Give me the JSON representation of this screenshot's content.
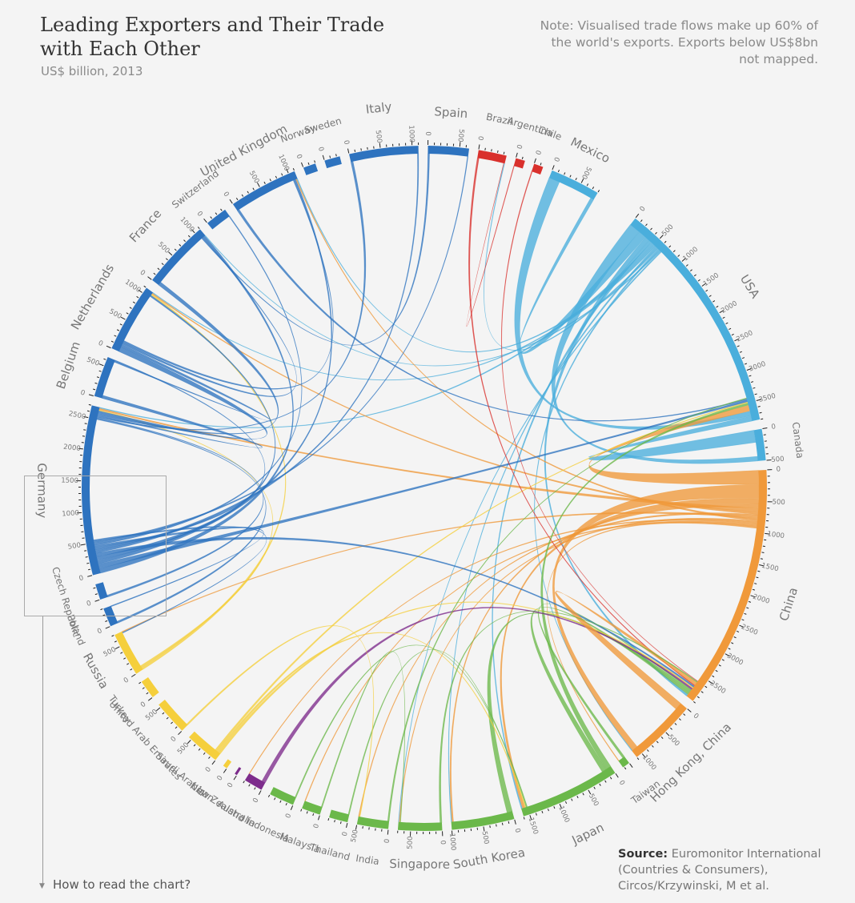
{
  "header": {
    "title": "Leading Exporters and Their Trade with Each Other",
    "subtitle": "US$ billion, 2013",
    "note": "Note: Visualised trade flows make up 60% of the world's exports. Exports below US$8bn not mapped."
  },
  "footer": {
    "source_label": "Source:",
    "source_text": "Euromonitor International (Countries & Consumers), Circos/Krzywinski, M et al.",
    "how_to_read": "How to read the chart?"
  },
  "colors": {
    "europe": "#2e73bf",
    "americas_north": "#4aaedc",
    "latam": "#d9302c",
    "china": "#f0993a",
    "asia_pacific": "#6bb84a",
    "middle_east": "#f5cf3c",
    "oceania": "#7d2c8c"
  },
  "chart_data": {
    "type": "chord",
    "title": "Leading Exporters and Their Trade with Each Other",
    "units": "US$ billion",
    "year": 2013,
    "segments": [
      {
        "name": "USA",
        "region": "americas_north",
        "exports": 3800,
        "ticks": [
          "0",
          "500",
          "1000",
          "1500",
          "2000",
          "2500",
          "3000",
          "3500"
        ]
      },
      {
        "name": "Canada",
        "region": "americas_north",
        "exports": 500,
        "ticks": [
          "0",
          "500"
        ]
      },
      {
        "name": "China",
        "region": "china",
        "exports": 3900,
        "ticks": [
          "0",
          "500",
          "1000",
          "1500",
          "2000",
          "2500",
          "3000",
          "3500"
        ]
      },
      {
        "name": "Hong Kong, China",
        "region": "china",
        "exports": 1100,
        "ticks": [
          "0",
          "500",
          "1000"
        ]
      },
      {
        "name": "Taiwan",
        "region": "asia_pacific",
        "exports": 120,
        "ticks": []
      },
      {
        "name": "Japan",
        "region": "asia_pacific",
        "exports": 1600,
        "ticks": [
          "0",
          "500",
          "1000",
          "1500"
        ]
      },
      {
        "name": "South Korea",
        "region": "asia_pacific",
        "exports": 1000,
        "ticks": [
          "0",
          "500",
          "1000"
        ]
      },
      {
        "name": "Singapore",
        "region": "asia_pacific",
        "exports": 700,
        "ticks": [
          "0",
          "500"
        ]
      },
      {
        "name": "India",
        "region": "asia_pacific",
        "exports": 500,
        "ticks": [
          "0",
          "500"
        ]
      },
      {
        "name": "Thailand",
        "region": "asia_pacific",
        "exports": 300,
        "ticks": [
          "0"
        ]
      },
      {
        "name": "Malaysia",
        "region": "asia_pacific",
        "exports": 300,
        "ticks": [
          "0"
        ]
      },
      {
        "name": "Indonesia",
        "region": "asia_pacific",
        "exports": 400,
        "ticks": [
          "0"
        ]
      },
      {
        "name": "Australia",
        "region": "oceania",
        "exports": 300,
        "ticks": [
          "0"
        ]
      },
      {
        "name": "New Zealand",
        "region": "oceania",
        "exports": 40,
        "ticks": [
          "0"
        ]
      },
      {
        "name": "Iran",
        "region": "middle_east",
        "exports": 70,
        "ticks": [
          "0"
        ]
      },
      {
        "name": "Saudi Arabia",
        "region": "middle_east",
        "exports": 550,
        "ticks": [
          "0",
          "500"
        ]
      },
      {
        "name": "United Arab Emirates",
        "region": "middle_east",
        "exports": 550,
        "ticks": [
          "0",
          "500"
        ]
      },
      {
        "name": "Turkey",
        "region": "middle_east",
        "exports": 300,
        "ticks": [
          "0"
        ]
      },
      {
        "name": "Russia",
        "region": "middle_east",
        "exports": 700,
        "ticks": [
          "0",
          "500"
        ]
      },
      {
        "name": "Poland",
        "region": "europe",
        "exports": 300,
        "ticks": [
          "0"
        ]
      },
      {
        "name": "Czech Republic",
        "region": "europe",
        "exports": 250,
        "ticks": [
          "0"
        ]
      },
      {
        "name": "Germany",
        "region": "europe",
        "exports": 2700,
        "ticks": [
          "0",
          "500",
          "1000",
          "1500",
          "2000",
          "2500"
        ]
      },
      {
        "name": "Belgium",
        "region": "europe",
        "exports": 650,
        "ticks": [
          "0",
          "500"
        ]
      },
      {
        "name": "Netherlands",
        "region": "europe",
        "exports": 1100,
        "ticks": [
          "0",
          "500",
          "1000"
        ]
      },
      {
        "name": "France",
        "region": "europe",
        "exports": 1100,
        "ticks": [
          "0",
          "500",
          "1000"
        ]
      },
      {
        "name": "Switzerland",
        "region": "europe",
        "exports": 350,
        "ticks": [
          "0"
        ]
      },
      {
        "name": "United Kingdom",
        "region": "europe",
        "exports": 1100,
        "ticks": [
          "0",
          "500",
          "1000"
        ]
      },
      {
        "name": "Norway",
        "region": "europe",
        "exports": 200,
        "ticks": [
          "0"
        ]
      },
      {
        "name": "Sweden",
        "region": "europe",
        "exports": 250,
        "ticks": [
          "0"
        ]
      },
      {
        "name": "Italy",
        "region": "europe",
        "exports": 1100,
        "ticks": [
          "0",
          "500",
          "1000"
        ]
      },
      {
        "name": "Spain",
        "region": "europe",
        "exports": 650,
        "ticks": [
          "0",
          "500"
        ]
      },
      {
        "name": "Brazil",
        "region": "latam",
        "exports": 450,
        "ticks": [
          "0"
        ]
      },
      {
        "name": "Argentina",
        "region": "latam",
        "exports": 150,
        "ticks": [
          "0"
        ]
      },
      {
        "name": "Chile",
        "region": "latam",
        "exports": 150,
        "ticks": [
          "0"
        ]
      },
      {
        "name": "Mexico",
        "region": "americas_north",
        "exports": 800,
        "ticks": [
          "0",
          "500"
        ]
      }
    ],
    "flows": [
      {
        "from": "USA",
        "to": "Canada",
        "value": 300
      },
      {
        "from": "USA",
        "to": "Mexico",
        "value": 220
      },
      {
        "from": "USA",
        "to": "China",
        "value": 120
      },
      {
        "from": "USA",
        "to": "Japan",
        "value": 70
      },
      {
        "from": "USA",
        "to": "Germany",
        "value": 50
      },
      {
        "from": "USA",
        "to": "United Kingdom",
        "value": 45
      },
      {
        "from": "USA",
        "to": "Netherlands",
        "value": 40
      },
      {
        "from": "USA",
        "to": "South Korea",
        "value": 40
      },
      {
        "from": "USA",
        "to": "Brazil",
        "value": 40
      },
      {
        "from": "USA",
        "to": "Hong Kong, China",
        "value": 40
      },
      {
        "from": "USA",
        "to": "France",
        "value": 30
      },
      {
        "from": "USA",
        "to": "Singapore",
        "value": 30
      },
      {
        "from": "Canada",
        "to": "USA",
        "value": 330
      },
      {
        "from": "Mexico",
        "to": "USA",
        "value": 300
      },
      {
        "from": "China",
        "to": "USA",
        "value": 370
      },
      {
        "from": "China",
        "to": "Hong Kong, China",
        "value": 380
      },
      {
        "from": "China",
        "to": "Japan",
        "value": 150
      },
      {
        "from": "China",
        "to": "South Korea",
        "value": 90
      },
      {
        "from": "China",
        "to": "Germany",
        "value": 95
      },
      {
        "from": "China",
        "to": "Netherlands",
        "value": 60
      },
      {
        "from": "China",
        "to": "India",
        "value": 50
      },
      {
        "from": "China",
        "to": "Russia",
        "value": 50
      },
      {
        "from": "China",
        "to": "United Kingdom",
        "value": 50
      },
      {
        "from": "China",
        "to": "Singapore",
        "value": 45
      },
      {
        "from": "China",
        "to": "Australia",
        "value": 40
      },
      {
        "from": "China",
        "to": "Malaysia",
        "value": 45
      },
      {
        "from": "China",
        "to": "Taiwan",
        "value": 40
      },
      {
        "from": "Japan",
        "to": "USA",
        "value": 135
      },
      {
        "from": "Japan",
        "to": "China",
        "value": 130
      },
      {
        "from": "South Korea",
        "to": "China",
        "value": 145
      },
      {
        "from": "Taiwan",
        "to": "China",
        "value": 60
      },
      {
        "from": "Malaysia",
        "to": "Singapore",
        "value": 30
      },
      {
        "from": "Australia",
        "to": "China",
        "value": 100
      },
      {
        "from": "Saudi Arabia",
        "to": "China",
        "value": 55
      },
      {
        "from": "Saudi Arabia",
        "to": "Japan",
        "value": 55
      },
      {
        "from": "Saudi Arabia",
        "to": "USA",
        "value": 50
      },
      {
        "from": "Russia",
        "to": "Netherlands",
        "value": 70
      },
      {
        "from": "Russia",
        "to": "Germany",
        "value": 40
      },
      {
        "from": "Germany",
        "to": "France",
        "value": 125
      },
      {
        "from": "Germany",
        "to": "USA",
        "value": 115
      },
      {
        "from": "Germany",
        "to": "United Kingdom",
        "value": 95
      },
      {
        "from": "Germany",
        "to": "Netherlands",
        "value": 90
      },
      {
        "from": "Germany",
        "to": "China",
        "value": 90
      },
      {
        "from": "Germany",
        "to": "Italy",
        "value": 70
      },
      {
        "from": "Germany",
        "to": "Belgium",
        "value": 55
      },
      {
        "from": "Germany",
        "to": "Poland",
        "value": 55
      },
      {
        "from": "Germany",
        "to": "Switzerland",
        "value": 50
      },
      {
        "from": "Germany",
        "to": "Spain",
        "value": 45
      },
      {
        "from": "Germany",
        "to": "Russia",
        "value": 45
      },
      {
        "from": "Netherlands",
        "to": "Germany",
        "value": 135
      },
      {
        "from": "Netherlands",
        "to": "Belgium",
        "value": 65
      },
      {
        "from": "Netherlands",
        "to": "France",
        "value": 50
      },
      {
        "from": "Netherlands",
        "to": "United Kingdom",
        "value": 50
      },
      {
        "from": "France",
        "to": "Germany",
        "value": 95
      },
      {
        "from": "Belgium",
        "to": "Germany",
        "value": 80
      },
      {
        "from": "United Kingdom",
        "to": "USA",
        "value": 60
      },
      {
        "from": "Italy",
        "to": "Germany",
        "value": 60
      },
      {
        "from": "Spain",
        "to": "France",
        "value": 45
      },
      {
        "from": "Czech Republic",
        "to": "Germany",
        "value": 50
      },
      {
        "from": "Poland",
        "to": "Germany",
        "value": 50
      },
      {
        "from": "Brazil",
        "to": "China",
        "value": 45
      },
      {
        "from": "Hong Kong, China",
        "to": "China",
        "value": 200
      },
      {
        "from": "Singapore",
        "to": "China",
        "value": 50
      },
      {
        "from": "India",
        "to": "USA",
        "value": 40
      },
      {
        "from": "Thailand",
        "to": "Japan",
        "value": 30
      },
      {
        "from": "Indonesia",
        "to": "Japan",
        "value": 30
      },
      {
        "from": "United Arab Emirates",
        "to": "India",
        "value": 40
      },
      {
        "from": "Chile",
        "to": "China",
        "value": 20
      },
      {
        "from": "Argentina",
        "to": "Brazil",
        "value": 15
      }
    ]
  }
}
